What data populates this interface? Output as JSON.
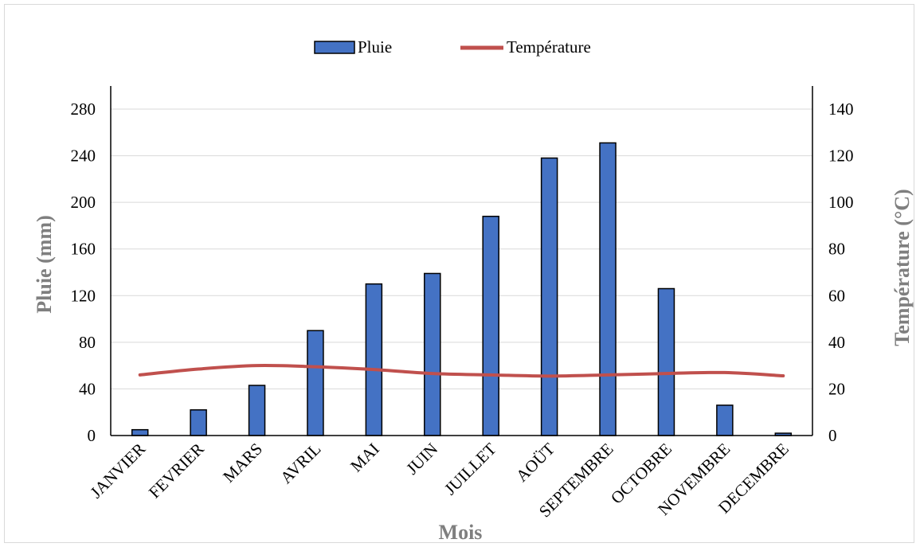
{
  "chart_data": {
    "type": "bar",
    "categories": [
      "JANVIER",
      "FEVRIER",
      "MARS",
      "AVRIL",
      "MAI",
      "JUIN",
      "JUILLET",
      "AOÜT",
      "SEPTEMBRE",
      "OCTOBRE",
      "NOVEMBRE",
      "DECEMBRE"
    ],
    "series": [
      {
        "name": "Pluie",
        "type": "bar",
        "axis": "left",
        "color": "#4472c4",
        "values": [
          5,
          22,
          43,
          90,
          130,
          139,
          188,
          238,
          251,
          126,
          26,
          2
        ]
      },
      {
        "name": "Température",
        "type": "line",
        "axis": "right",
        "color": "#c0504d",
        "values": [
          26,
          28.5,
          30,
          29.5,
          28.3,
          26.6,
          26,
          25.5,
          26,
          26.6,
          27,
          25.6
        ]
      }
    ],
    "xlabel": "Mois",
    "ylabel": "Pluie (mm)",
    "y2label": "Température (°C)",
    "ylim": [
      0,
      280
    ],
    "y2lim": [
      0,
      140
    ],
    "yticks": [
      "0",
      "40",
      "80",
      "120",
      "160",
      "200",
      "240",
      "280"
    ],
    "y2ticks": [
      "0",
      "20",
      "40",
      "60",
      "80",
      "100",
      "120",
      "140"
    ],
    "grid": true,
    "legend_position": "top"
  }
}
